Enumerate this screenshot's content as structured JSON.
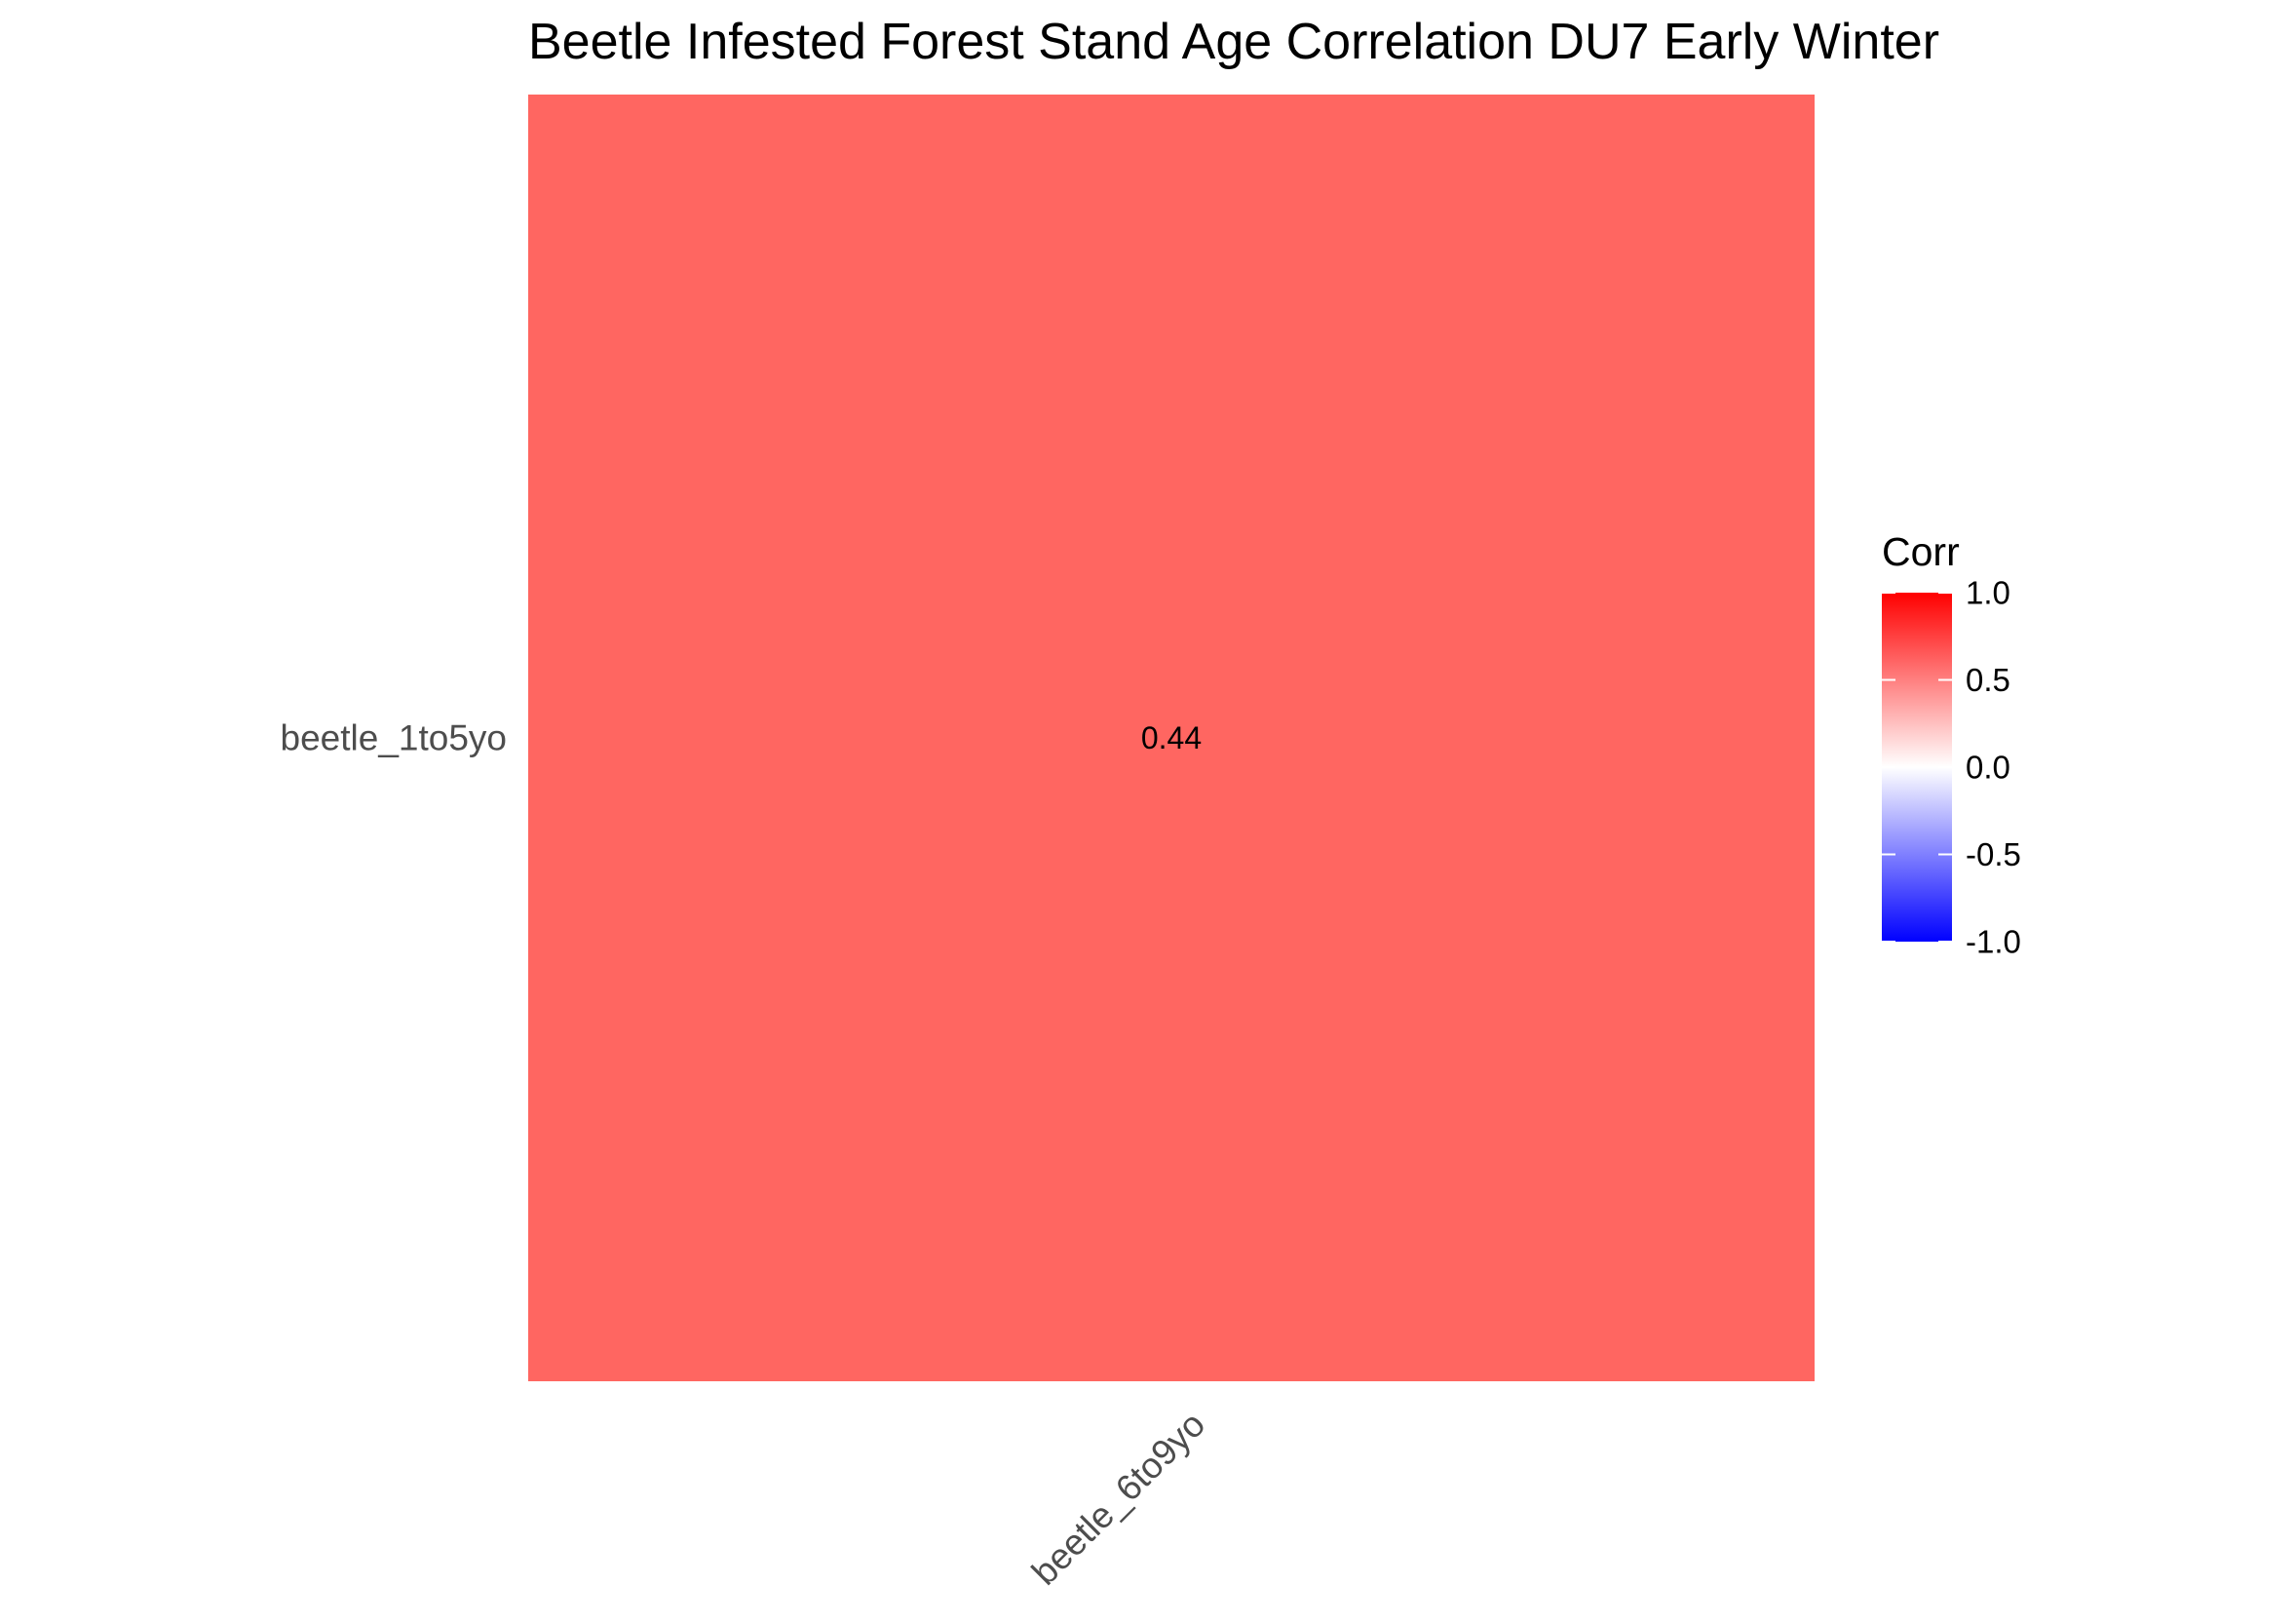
{
  "chart_data": {
    "type": "heatmap",
    "title": "Beetle Infested Forest Stand Age Correlation DU7 Early Winter",
    "x_categories": [
      "beetle_6to9yo"
    ],
    "y_categories": [
      "beetle_1to5yo"
    ],
    "cells": [
      {
        "x": "beetle_6to9yo",
        "y": "beetle_1to5yo",
        "value": 0.44,
        "label": "0.44"
      }
    ],
    "xlabel": "",
    "ylabel": "",
    "grid": false,
    "legend": {
      "title": "Corr",
      "placement": "right",
      "limits": [
        -1,
        1
      ],
      "ticks": [
        1.0,
        0.5,
        0.0,
        -0.5,
        -1.0
      ],
      "tick_labels": [
        "1.0",
        "0.5",
        "0.0",
        "-0.5",
        "-1.0"
      ],
      "colors": {
        "low": "#0000ff",
        "mid": "#ffffff",
        "high": "#ff0000"
      }
    }
  }
}
